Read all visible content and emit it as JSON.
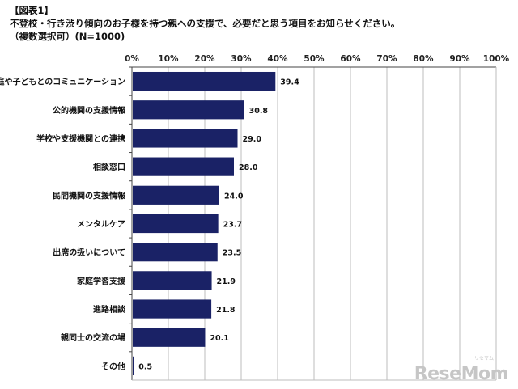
{
  "header": {
    "figure_label": "【図表1】",
    "question": "不登校・行き渋り傾向のお子様を持つ親への支援で、必要だと思う項目をお知らせください。",
    "note": "（複数選択可）(N=1000)"
  },
  "watermark": {
    "text": "ReseMom",
    "sub": "リセマム"
  },
  "colors": {
    "bar": "#1a2266",
    "grid": "#bdbdbd",
    "axis": "#444444"
  },
  "chart_data": {
    "type": "bar",
    "orientation": "horizontal",
    "categories": [
      "家庭や子どもとのコミュニケーション",
      "公的機関の支援情報",
      "学校や支援機関との連携",
      "相談窓口",
      "民間機関の支援情報",
      "メンタルケア",
      "出席の扱いについて",
      "家庭学習支援",
      "進路相談",
      "親同士の交流の場",
      "その他"
    ],
    "values": [
      39.4,
      30.8,
      29.0,
      28.0,
      24.0,
      23.7,
      23.5,
      21.9,
      21.8,
      20.1,
      0.5
    ],
    "value_labels": [
      "39.4",
      "30.8",
      "29.0",
      "28.0",
      "24.0",
      "23.7",
      "23.5",
      "21.9",
      "21.8",
      "20.1",
      "0.5"
    ],
    "xlim": [
      0,
      100
    ],
    "xticks": [
      "0%",
      "10%",
      "20%",
      "30%",
      "40%",
      "50%",
      "60%",
      "70%",
      "80%",
      "90%",
      "100%"
    ],
    "grid": true
  }
}
